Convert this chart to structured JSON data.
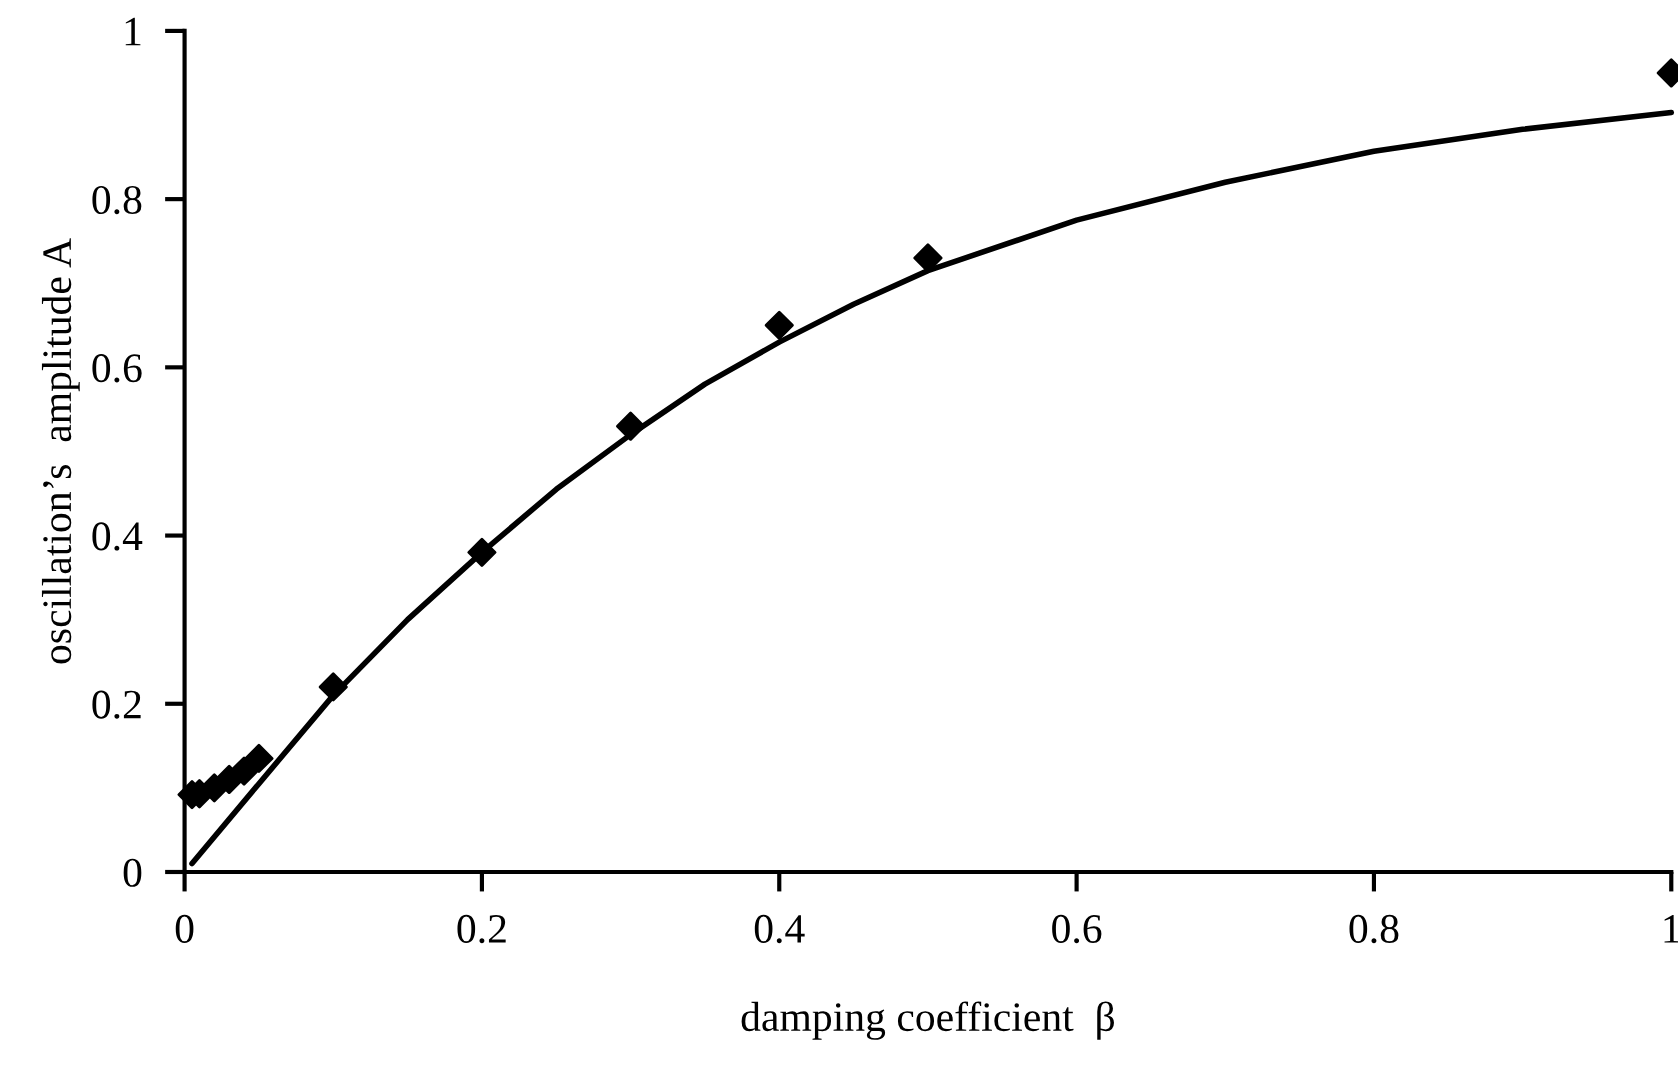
{
  "chart_data": {
    "type": "scatter",
    "xlabel": "damping coefficient  β",
    "ylabel": "oscillation’s  amplitude A",
    "xlim": [
      0,
      1
    ],
    "ylim": [
      0,
      1
    ],
    "xticks": [
      0,
      0.2,
      0.4,
      0.6,
      0.8,
      1
    ],
    "yticks": [
      0,
      0.2,
      0.4,
      0.6,
      0.8,
      1
    ],
    "grid": false,
    "legend": false,
    "series": [
      {
        "color": "#000000",
        "marker": "diamond",
        "x": [
          0.005,
          0.01,
          0.02,
          0.03,
          0.04,
          0.05,
          0.1,
          0.2,
          0.3,
          0.4,
          0.5,
          1.0
        ],
        "values": [
          0.092,
          0.093,
          0.1,
          0.11,
          0.12,
          0.135,
          0.22,
          0.38,
          0.53,
          0.65,
          0.73,
          0.95
        ]
      },
      {
        "type": "line",
        "color": "#000000",
        "marker": "none",
        "line_style": "solid",
        "x": [
          0.005,
          0.05,
          0.1,
          0.15,
          0.2,
          0.25,
          0.3,
          0.35,
          0.4,
          0.45,
          0.5,
          0.6,
          0.7,
          0.8,
          0.9,
          1.0
        ],
        "values": [
          0.01,
          0.105,
          0.21,
          0.3,
          0.38,
          0.455,
          0.52,
          0.58,
          0.63,
          0.675,
          0.715,
          0.775,
          0.82,
          0.857,
          0.883,
          0.903
        ]
      }
    ]
  }
}
